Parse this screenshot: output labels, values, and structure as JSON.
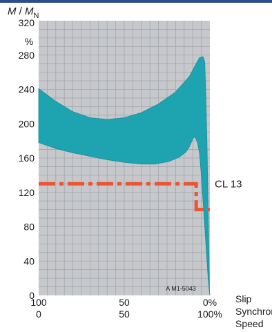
{
  "colors": {
    "top_rule": "#2e4d8f",
    "plot_background": "#c6c8cc",
    "grid": "#a2a6ac",
    "band": "#1ea3b0",
    "band_edge": "#1a8f9a",
    "cl_line": "#ee5431"
  },
  "chart_data": {
    "type": "area",
    "title": "",
    "ylabel_italic_1": "M",
    "ylabel_sep": " / ",
    "ylabel_italic_2": "M",
    "ylabel_sub": "N",
    "yunit": "%",
    "ylim": [
      0,
      320
    ],
    "yticks": [
      "0",
      "40",
      "80",
      "120",
      "160",
      "200",
      "240",
      "280",
      "320"
    ],
    "xlim": [
      100,
      0
    ],
    "x_ticks": [
      {
        "x": 100,
        "slip": "100",
        "speed": "0"
      },
      {
        "x": 50,
        "slip": "50",
        "speed": "50"
      },
      {
        "x": 0,
        "slip": "0%",
        "speed": "100%"
      }
    ],
    "x_row_labels": [
      "Slip",
      "Synchronous",
      "Speed"
    ],
    "grid": true,
    "watermark": "A M1-5043",
    "band": {
      "upper": [
        [
          100,
          241
        ],
        [
          90,
          226
        ],
        [
          80,
          214
        ],
        [
          70,
          207
        ],
        [
          60,
          205
        ],
        [
          50,
          207
        ],
        [
          40,
          213
        ],
        [
          30,
          223
        ],
        [
          20,
          237
        ],
        [
          12,
          255
        ],
        [
          8,
          270
        ],
        [
          6,
          277
        ],
        [
          4,
          278
        ],
        [
          3,
          272
        ],
        [
          2.3,
          230
        ],
        [
          1.6,
          170
        ],
        [
          1,
          100
        ],
        [
          0.5,
          40
        ],
        [
          0.2,
          5
        ],
        [
          0,
          0
        ]
      ],
      "lower": [
        [
          100,
          178
        ],
        [
          90,
          171
        ],
        [
          80,
          166
        ],
        [
          70,
          162
        ],
        [
          60,
          158
        ],
        [
          50,
          155
        ],
        [
          40,
          153
        ],
        [
          32,
          153
        ],
        [
          24,
          156
        ],
        [
          18,
          161
        ],
        [
          14,
          167
        ],
        [
          12,
          173
        ],
        [
          10.5,
          180
        ],
        [
          9.5,
          184
        ],
        [
          8.5,
          184
        ],
        [
          7.2,
          178
        ],
        [
          6,
          165
        ],
        [
          5,
          140
        ],
        [
          4,
          110
        ],
        [
          3,
          80
        ],
        [
          2,
          50
        ],
        [
          1,
          20
        ],
        [
          0.3,
          4
        ],
        [
          0,
          0
        ]
      ]
    },
    "series": [
      {
        "name": "CL 13",
        "style": "dash-dot",
        "points": [
          [
            100,
            130
          ],
          [
            8,
            130
          ],
          [
            8,
            100
          ],
          [
            0,
            100
          ]
        ]
      }
    ]
  }
}
